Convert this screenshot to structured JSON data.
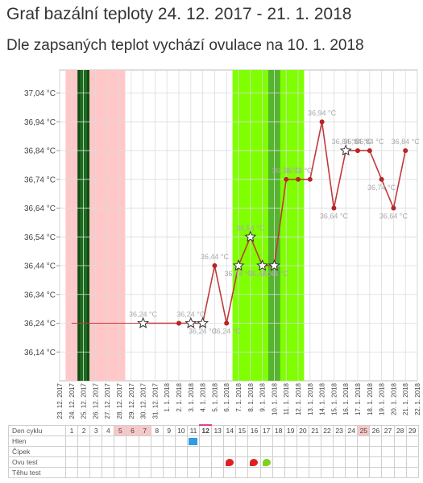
{
  "title": "Graf bazální teploty 24. 12. 2017 - 21. 1. 2018",
  "subtitle": "Dle zapsaných teplot vychází ovulace na 10. 1. 2018",
  "colors": {
    "line": "#c0393b",
    "marker": "#b82525",
    "menses_band": "#ffc7c7",
    "menses_dark": "#0f4d12",
    "fertile_band": "#7fff00",
    "fertile_dark": "#5cc913",
    "ovulation_dark": "#55b52e"
  },
  "chart_data": {
    "type": "line",
    "y_ticks": [
      "37,04 °C",
      "36,94 °C",
      "36,84 °C",
      "36,74 °C",
      "36,64 °C",
      "36,54 °C",
      "36,44 °C",
      "36,34 °C",
      "36,24 °C",
      "36,14 °C"
    ],
    "ylim": [
      36.04,
      37.12
    ],
    "x_dates": [
      "23. 12. 2017",
      "24. 12. 2017",
      "25. 12. 2017",
      "26. 12. 2017",
      "27. 12. 2017",
      "28. 12. 2017",
      "29. 12. 2017",
      "30. 12. 2017",
      "31. 12. 2017",
      "1. 1. 2018",
      "2. 1. 2018",
      "3. 1. 2018",
      "4. 1. 2018",
      "5. 1. 2018",
      "6. 1. 2018",
      "7. 1. 2018",
      "8. 1. 2018",
      "9. 1. 2018",
      "10. 1. 2018",
      "11. 1. 2018",
      "12. 1. 2018",
      "13. 1. 2018",
      "14. 1. 2018",
      "15. 1. 2018",
      "16. 1. 2018",
      "17. 1. 2018",
      "18. 1. 2018",
      "19. 1. 2018",
      "20. 1. 2018",
      "21. 1. 2018",
      "22. 1. 2018"
    ],
    "baseline": {
      "from": "24. 12. 2017",
      "to": "30. 12. 2017",
      "value": 36.24
    },
    "series": [
      {
        "points": [
          {
            "x": "30. 12. 2017",
            "y": 36.24,
            "marker": "star",
            "label": "36,24 °C"
          },
          {
            "x": "2. 1. 2018",
            "y": 36.24,
            "marker": "dot",
            "label": ""
          },
          {
            "x": "3. 1. 2018",
            "y": 36.24,
            "marker": "star",
            "label": "36,24 °C"
          },
          {
            "x": "4. 1. 2018",
            "y": 36.24,
            "marker": "star",
            "label": "36,24 °C"
          },
          {
            "x": "5. 1. 2018",
            "y": 36.44,
            "marker": "dot",
            "label": "36,44 °C"
          },
          {
            "x": "6. 1. 2018",
            "y": 36.24,
            "marker": "dot",
            "label": "36,24 °C"
          },
          {
            "x": "7. 1. 2018",
            "y": 36.44,
            "marker": "star",
            "label": "36,44 °C"
          },
          {
            "x": "8. 1. 2018",
            "y": 36.54,
            "marker": "star",
            "label": "36,54 °C"
          },
          {
            "x": "9. 1. 2018",
            "y": 36.44,
            "marker": "star",
            "label": "36,44 °C"
          },
          {
            "x": "10. 1. 2018",
            "y": 36.44,
            "marker": "star",
            "label": "36,44 °C"
          },
          {
            "x": "11. 1. 2018",
            "y": 36.74,
            "marker": "dot",
            "label": "36,74 °C"
          },
          {
            "x": "12. 1. 2018",
            "y": 36.74,
            "marker": "dot",
            "label": "36,74 °C"
          },
          {
            "x": "13. 1. 2018",
            "y": 36.74,
            "marker": "dot",
            "label": ""
          },
          {
            "x": "14. 1. 2018",
            "y": 36.94,
            "marker": "dot",
            "label": "36,94 °C"
          },
          {
            "x": "15. 1. 2018",
            "y": 36.64,
            "marker": "dot",
            "label": "36,64 °C"
          },
          {
            "x": "16. 1. 2018",
            "y": 36.84,
            "marker": "star",
            "label": "36,84 °C"
          },
          {
            "x": "17. 1. 2018",
            "y": 36.84,
            "marker": "dot",
            "label": "36,84 °C"
          },
          {
            "x": "18. 1. 2018",
            "y": 36.84,
            "marker": "dot",
            "label": "36,84 °C"
          },
          {
            "x": "19. 1. 2018",
            "y": 36.74,
            "marker": "dot",
            "label": "36,74 °C"
          },
          {
            "x": "20. 1. 2018",
            "y": 36.64,
            "marker": "dot",
            "label": "36,64 °C"
          },
          {
            "x": "21. 1. 2018",
            "y": 36.84,
            "marker": "dot",
            "label": "36,84 °C"
          }
        ]
      }
    ],
    "bands": [
      {
        "from": "24. 12. 2017",
        "to": "28. 12. 2017",
        "kind": "menses"
      },
      {
        "from": "25. 12. 2017",
        "to": "25. 12. 2017",
        "kind": "menses_dark"
      },
      {
        "from": "7. 1. 2018",
        "to": "12. 1. 2018",
        "kind": "fertile"
      },
      {
        "from": "10. 1. 2018",
        "to": "10. 1. 2018",
        "kind": "ovulation"
      }
    ],
    "grid": true
  },
  "table": {
    "rows": [
      "Den cyklu",
      "Hlen",
      "Čípek",
      "Ovu test",
      "Těhu test"
    ],
    "days": [
      "1",
      "2",
      "3",
      "4",
      "5",
      "6",
      "7",
      "8",
      "9",
      "10",
      "11",
      "12",
      "13",
      "14",
      "15",
      "16",
      "17",
      "18",
      "19",
      "20",
      "21",
      "22",
      "23",
      "24",
      "25",
      "26",
      "27",
      "28",
      "29"
    ],
    "highlight_days": [
      "5",
      "6",
      "7",
      "25"
    ],
    "today_day": "12",
    "hlen_mark_day": "11",
    "ovu_marks": [
      {
        "day": "14",
        "color": "#e02020"
      },
      {
        "day": "16",
        "color": "#e02020"
      },
      {
        "day": "17",
        "color": "#7ed321"
      }
    ]
  }
}
